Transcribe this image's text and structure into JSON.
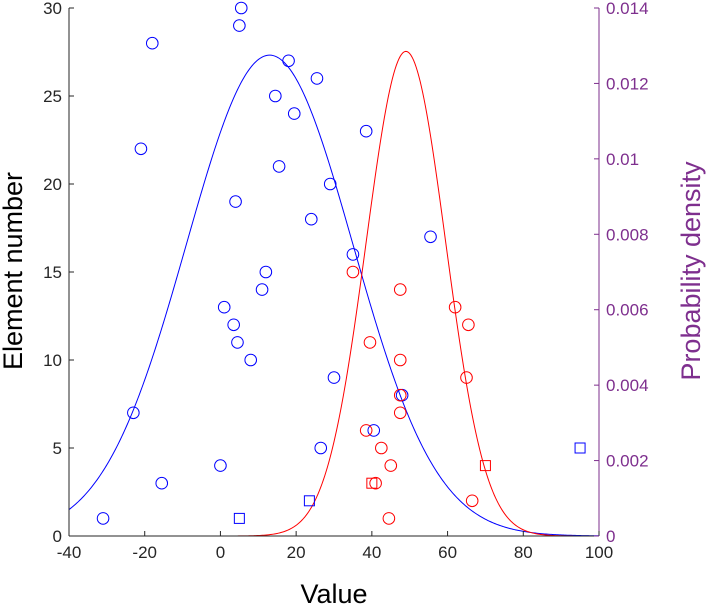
{
  "chart_data": {
    "type": "scatter",
    "title": "",
    "xlabel": "Value",
    "ylabel": "Element number",
    "y2label": "Probability density",
    "xlim": [
      -40,
      100
    ],
    "ylim": [
      0,
      30
    ],
    "y2lim": [
      0,
      0.014
    ],
    "grid": false,
    "legend": "none",
    "x_ticks": [
      "-40",
      "-20",
      "0",
      "20",
      "40",
      "60",
      "80",
      "100"
    ],
    "y_ticks": [
      "0",
      "5",
      "10",
      "15",
      "20",
      "25",
      "30"
    ],
    "y2_ticks": [
      "0",
      "0.002",
      "0.004",
      "0.006",
      "0.008",
      "0.01",
      "0.012",
      "0.014"
    ],
    "colors": {
      "blue": "#0000FF",
      "red": "#FF0000",
      "purple_axis": "#7E2F8E",
      "left_axis": "#262626"
    },
    "series": [
      {
        "color": "#0000FF",
        "marker": "circle",
        "points": [
          {
            "x": -31,
            "y": 1
          },
          {
            "x": -15.5,
            "y": 3
          },
          {
            "x": 0,
            "y": 4
          },
          {
            "x": 26.5,
            "y": 5
          },
          {
            "x": 40.5,
            "y": 6
          },
          {
            "x": -23,
            "y": 7
          },
          {
            "x": 48,
            "y": 8
          },
          {
            "x": 30,
            "y": 9
          },
          {
            "x": 8,
            "y": 10
          },
          {
            "x": 4.5,
            "y": 11
          },
          {
            "x": 3.5,
            "y": 12
          },
          {
            "x": 1,
            "y": 13
          },
          {
            "x": 11,
            "y": 14
          },
          {
            "x": 12,
            "y": 15
          },
          {
            "x": 35,
            "y": 16
          },
          {
            "x": 55.5,
            "y": 17
          },
          {
            "x": 24,
            "y": 18
          },
          {
            "x": 4,
            "y": 19
          },
          {
            "x": 29,
            "y": 20
          },
          {
            "x": 15.5,
            "y": 21
          },
          {
            "x": -21,
            "y": 22
          },
          {
            "x": 38.5,
            "y": 23
          },
          {
            "x": 19.5,
            "y": 24
          },
          {
            "x": 14.5,
            "y": 25
          },
          {
            "x": 25.5,
            "y": 26
          },
          {
            "x": 18,
            "y": 27
          },
          {
            "x": -18,
            "y": 28
          },
          {
            "x": 5,
            "y": 29
          },
          {
            "x": 5.5,
            "y": 30
          }
        ]
      },
      {
        "color": "#0000FF",
        "marker": "square",
        "points": [
          {
            "x": 5,
            "y": 1
          },
          {
            "x": 23.5,
            "y": 2
          },
          {
            "x": 95,
            "y": 5
          }
        ]
      },
      {
        "color": "#FF0000",
        "marker": "circle",
        "points": [
          {
            "x": 44.5,
            "y": 1
          },
          {
            "x": 66.5,
            "y": 2
          },
          {
            "x": 41,
            "y": 3
          },
          {
            "x": 45,
            "y": 4
          },
          {
            "x": 42.5,
            "y": 5
          },
          {
            "x": 38.5,
            "y": 6
          },
          {
            "x": 47.5,
            "y": 7
          },
          {
            "x": 47.5,
            "y": 8
          },
          {
            "x": 65,
            "y": 9
          },
          {
            "x": 47.5,
            "y": 10
          },
          {
            "x": 39.5,
            "y": 11
          },
          {
            "x": 65.5,
            "y": 12
          },
          {
            "x": 62,
            "y": 13
          },
          {
            "x": 47.5,
            "y": 14
          },
          {
            "x": 35,
            "y": 15
          }
        ]
      },
      {
        "color": "#FF0000",
        "marker": "square",
        "points": [
          {
            "x": 40,
            "y": 3
          },
          {
            "x": 70,
            "y": 4
          }
        ]
      }
    ],
    "curves": [
      {
        "color": "#0000FF",
        "axis": "right",
        "type": "normal-pdf",
        "mean": 13,
        "std": 22,
        "peak": 0.01275
      },
      {
        "color": "#FF0000",
        "axis": "right",
        "type": "normal-pdf",
        "mean": 49,
        "std": 10.5,
        "peak": 0.01285
      }
    ]
  }
}
